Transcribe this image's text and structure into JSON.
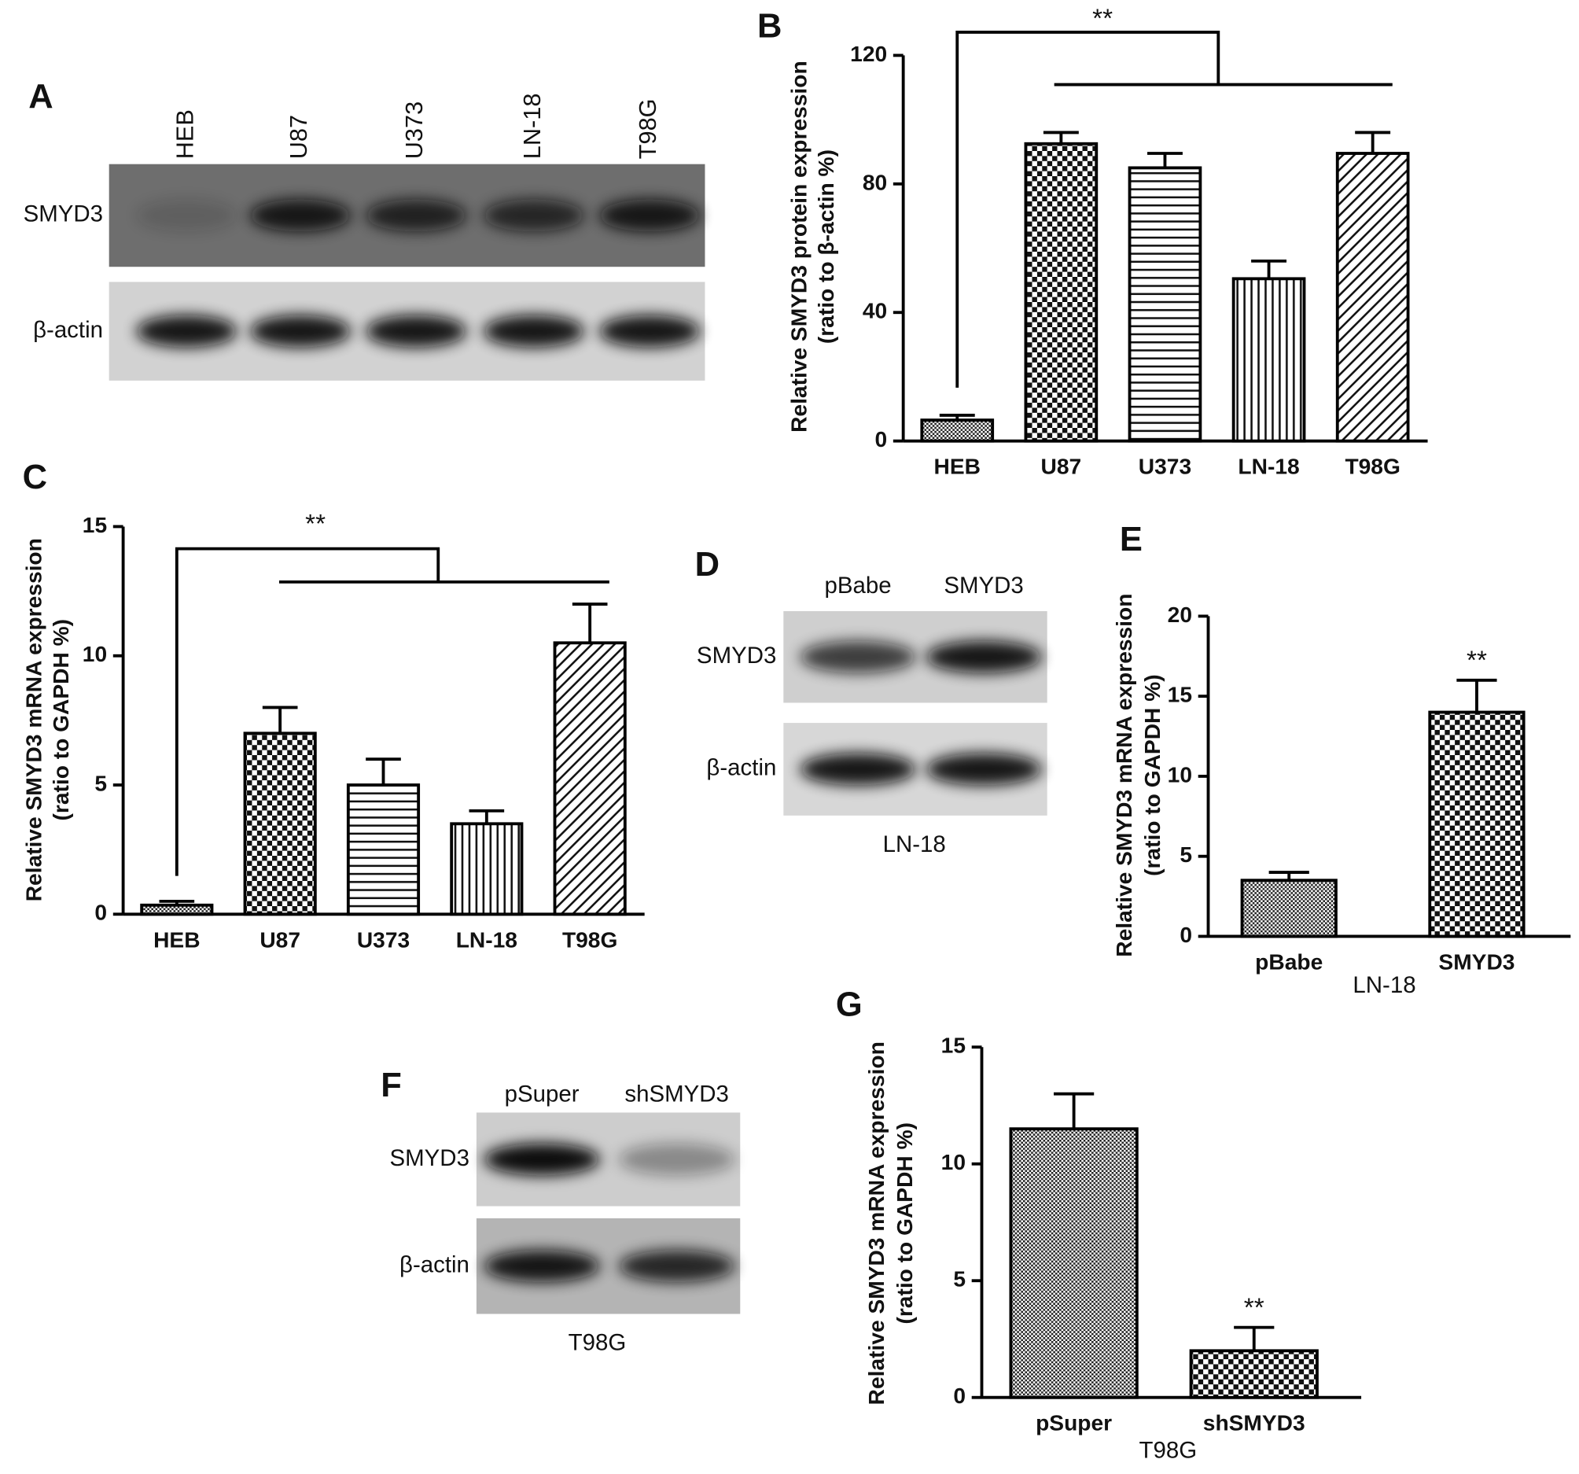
{
  "chart_data": [
    {
      "type": "bar",
      "label": "B",
      "ylabel": [
        "Relative SMYD3 protein expression",
        "(ratio to β-actin %)"
      ],
      "categories": [
        "HEB",
        "U87",
        "U373",
        "LN-18",
        "T98G"
      ],
      "values": [
        6.5,
        92.5,
        85,
        50.5,
        89.5
      ],
      "errors": [
        1.5,
        3.5,
        4.5,
        5.5,
        6.5
      ],
      "hatch": [
        "dots",
        "checker",
        "horizontal",
        "vertical",
        "diagonal"
      ],
      "ylim": [
        0,
        120
      ],
      "yticks": [
        0,
        40,
        80,
        120
      ],
      "annotation": "**",
      "annotation_style": "bracket"
    },
    {
      "type": "bar",
      "label": "C",
      "ylabel": [
        "Relative SMYD3 mRNA expression",
        "(ratio to GAPDH %)"
      ],
      "categories": [
        "HEB",
        "U87",
        "U373",
        "LN-18",
        "T98G"
      ],
      "values": [
        0.35,
        7,
        5,
        3.5,
        10.5
      ],
      "errors": [
        0.15,
        1,
        1,
        0.5,
        1.5
      ],
      "hatch": [
        "dots",
        "checker",
        "horizontal",
        "vertical",
        "diagonal"
      ],
      "ylim": [
        0,
        15
      ],
      "yticks": [
        0,
        5,
        10,
        15
      ],
      "annotation": "**",
      "annotation_style": "bracket"
    },
    {
      "type": "bar",
      "label": "E",
      "ylabel": [
        "Relative SMYD3 mRNA expression",
        "(ratio to GAPDH %)"
      ],
      "categories": [
        "pBabe",
        "SMYD3"
      ],
      "values": [
        3.5,
        14
      ],
      "errors": [
        0.5,
        2
      ],
      "hatch": [
        "dots",
        "checker"
      ],
      "ylim": [
        0,
        20
      ],
      "yticks": [
        0,
        5,
        10,
        15,
        20
      ],
      "annotation": "**",
      "annotation_style": "above-last",
      "caption": "LN-18"
    },
    {
      "type": "bar",
      "label": "G",
      "ylabel": [
        "Relative SMYD3 mRNA expression",
        "(ratio to GAPDH %)"
      ],
      "categories": [
        "pSuper",
        "shSMYD3"
      ],
      "values": [
        11.5,
        2
      ],
      "errors": [
        1.5,
        1
      ],
      "hatch": [
        "dots",
        "checker"
      ],
      "ylim": [
        0,
        15
      ],
      "yticks": [
        0,
        5,
        10,
        15
      ],
      "annotation": "**",
      "annotation_style": "above-last",
      "caption": "T98G"
    }
  ],
  "blots": [
    {
      "label": "A",
      "lanes": [
        "HEB",
        "U87",
        "U373",
        "LN-18",
        "T98G"
      ],
      "rows": [
        "SMYD3",
        "β-actin"
      ]
    },
    {
      "label": "D",
      "lanes": [
        "pBabe",
        "SMYD3"
      ],
      "rows": [
        "SMYD3",
        "β-actin"
      ],
      "caption": "LN-18"
    },
    {
      "label": "F",
      "lanes": [
        "pSuper",
        "shSMYD3"
      ],
      "rows": [
        "SMYD3",
        "β-actin"
      ],
      "caption": "T98G"
    }
  ]
}
